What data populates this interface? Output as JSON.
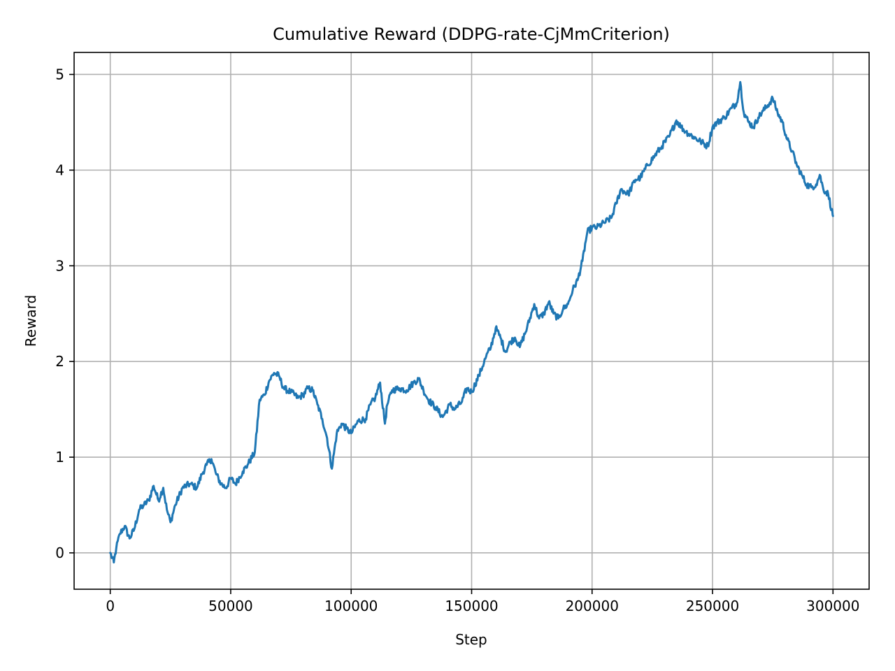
{
  "chart_data": {
    "type": "line",
    "title": "Cumulative Reward (DDPG-rate-CjMmCriterion)",
    "xlabel": "Step",
    "ylabel": "Reward",
    "xlim": [
      -15000,
      315000
    ],
    "ylim": [
      -0.38,
      5.23
    ],
    "xticks": [
      0,
      50000,
      100000,
      150000,
      200000,
      250000,
      300000
    ],
    "xtick_labels": [
      "0",
      "50000",
      "100000",
      "150000",
      "200000",
      "250000",
      "300000"
    ],
    "yticks": [
      0,
      1,
      2,
      3,
      4,
      5
    ],
    "ytick_labels": [
      "0",
      "1",
      "2",
      "3",
      "4",
      "5"
    ],
    "grid": true,
    "legend": "none",
    "series": [
      {
        "color": "#1f77b4",
        "x": [
          0,
          1500,
          2500,
          4000,
          6000,
          8000,
          10000,
          12000,
          14000,
          16000,
          18000,
          20000,
          22000,
          23500,
          25000,
          27000,
          30000,
          33000,
          36000,
          38000,
          40000,
          42000,
          44000,
          46000,
          48000,
          50000,
          52000,
          55000,
          57000,
          60000,
          62000,
          64000,
          66000,
          68000,
          70000,
          72000,
          75000,
          78000,
          80000,
          82000,
          84000,
          86000,
          88000,
          90000,
          92000,
          94000,
          96000,
          98000,
          100000,
          103000,
          106000,
          108000,
          110000,
          112000,
          114000,
          115000,
          117000,
          120000,
          123000,
          126000,
          128000,
          130000,
          132000,
          135000,
          138000,
          141000,
          143000,
          146000,
          148000,
          150000,
          153000,
          156000,
          158000,
          160000,
          162000,
          164000,
          166000,
          168000,
          170000,
          173000,
          176000,
          178000,
          180000,
          182000,
          184000,
          186000,
          188000,
          190000,
          192000,
          194000,
          196000,
          198000,
          200000,
          202000,
          205000,
          208000,
          210000,
          212000,
          215000,
          218000,
          220000,
          223000,
          226000,
          229000,
          232000,
          235000,
          237000,
          239000,
          242000,
          245000,
          248000,
          250000,
          252000,
          255000,
          258000,
          260000,
          261500,
          263000,
          265000,
          267000,
          269000,
          271000,
          273000,
          275000,
          277000,
          279000,
          281000,
          283000,
          285000,
          287000,
          289000,
          291000,
          293000,
          294500,
          296000,
          298000,
          299500,
          300000
        ],
        "y": [
          0.0,
          -0.1,
          0.05,
          0.2,
          0.28,
          0.15,
          0.25,
          0.45,
          0.5,
          0.55,
          0.7,
          0.55,
          0.68,
          0.45,
          0.32,
          0.5,
          0.68,
          0.72,
          0.68,
          0.82,
          0.92,
          0.98,
          0.82,
          0.72,
          0.68,
          0.78,
          0.72,
          0.85,
          0.92,
          1.05,
          1.6,
          1.65,
          1.8,
          1.88,
          1.85,
          1.72,
          1.68,
          1.62,
          1.65,
          1.72,
          1.7,
          1.55,
          1.4,
          1.2,
          0.88,
          1.25,
          1.35,
          1.3,
          1.25,
          1.38,
          1.4,
          1.55,
          1.62,
          1.78,
          1.35,
          1.55,
          1.7,
          1.72,
          1.7,
          1.78,
          1.82,
          1.7,
          1.6,
          1.52,
          1.42,
          1.55,
          1.5,
          1.58,
          1.72,
          1.68,
          1.85,
          2.05,
          2.15,
          2.35,
          2.25,
          2.1,
          2.2,
          2.25,
          2.15,
          2.35,
          2.6,
          2.45,
          2.5,
          2.62,
          2.5,
          2.45,
          2.55,
          2.6,
          2.75,
          2.85,
          3.05,
          3.35,
          3.4,
          3.4,
          3.45,
          3.5,
          3.65,
          3.8,
          3.75,
          3.9,
          3.92,
          4.05,
          4.15,
          4.25,
          4.35,
          4.52,
          4.45,
          4.4,
          4.35,
          4.3,
          4.25,
          4.45,
          4.5,
          4.55,
          4.65,
          4.7,
          4.92,
          4.6,
          4.5,
          4.45,
          4.55,
          4.62,
          4.68,
          4.75,
          4.6,
          4.5,
          4.32,
          4.2,
          4.05,
          3.95,
          3.85,
          3.82,
          3.85,
          3.95,
          3.8,
          3.75,
          3.58,
          3.52
        ]
      }
    ]
  }
}
